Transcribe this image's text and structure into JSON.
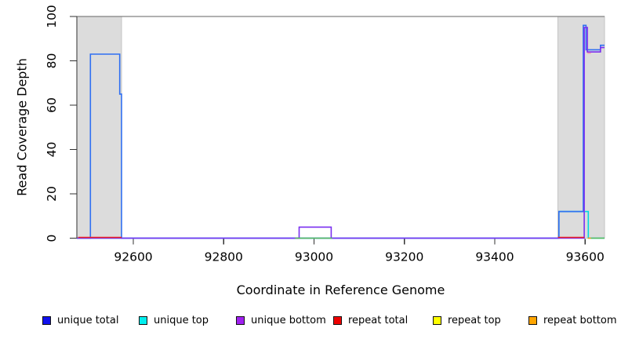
{
  "figure_title": "",
  "axes": {
    "xlabel": "Coordinate in Reference Genome",
    "ylabel": "Read Coverage Depth"
  },
  "chart_data": {
    "type": "line",
    "subtype": "step-coverage-plot",
    "title": "",
    "xlabel": "Coordinate in Reference Genome",
    "ylabel": "Read Coverage Depth",
    "xlim": [
      92475,
      93643
    ],
    "ylim": [
      0,
      100
    ],
    "x_ticks": [
      92600,
      92800,
      93000,
      93200,
      93400,
      93600
    ],
    "y_ticks": [
      0,
      20,
      40,
      60,
      80,
      100
    ],
    "grid": false,
    "reference_line_y": 100,
    "reference_line_color": "#808080",
    "shaded_regions": [
      {
        "name": "left-highlight-region",
        "x1": 92475,
        "x2": 92574,
        "fill": "#dcdcdc",
        "border": "#c4c4c4"
      },
      {
        "name": "right-highlight-region",
        "x1": 93540,
        "x2": 93643,
        "fill": "#dcdcdc",
        "border": "#c4c4c4"
      }
    ],
    "series": [
      {
        "name": "unique total",
        "line_color": "#2f6ff2",
        "legend_color": "#1111ee",
        "step_points": [
          [
            92475,
            0
          ],
          [
            92505,
            0
          ],
          [
            92505,
            83
          ],
          [
            92570,
            83
          ],
          [
            92570,
            65
          ],
          [
            92574,
            65
          ],
          [
            92574,
            0
          ],
          [
            93542,
            0
          ],
          [
            93542,
            12
          ],
          [
            93596,
            12
          ],
          [
            93596,
            96
          ],
          [
            93602,
            96
          ],
          [
            93602,
            85
          ],
          [
            93634,
            85
          ],
          [
            93634,
            87
          ],
          [
            93643,
            87
          ]
        ]
      },
      {
        "name": "unique top",
        "line_color": "#00d9e0",
        "legend_color": "#00eeee",
        "step_points": [
          [
            92475,
            0
          ],
          [
            93542,
            0
          ],
          [
            93542,
            12
          ],
          [
            93607,
            12
          ],
          [
            93607,
            0
          ],
          [
            93643,
            0
          ]
        ]
      },
      {
        "name": "unique bottom",
        "line_color": "#7a2ff0",
        "legend_color": "#a020f0",
        "step_points": [
          [
            92475,
            0
          ],
          [
            92967,
            0
          ],
          [
            92967,
            5
          ],
          [
            93038,
            5
          ],
          [
            93038,
            0
          ],
          [
            93598,
            0
          ],
          [
            93598,
            95
          ],
          [
            93605,
            95
          ],
          [
            93605,
            84
          ],
          [
            93634,
            84
          ],
          [
            93634,
            86
          ],
          [
            93643,
            86
          ]
        ]
      },
      {
        "name": "repeat total",
        "line_color": "#ee2222",
        "legend_color": "#ee0000",
        "segments": [
          {
            "y": 0,
            "x1": 92478,
            "x2": 92574
          },
          {
            "y": 0,
            "x1": 93540,
            "x2": 93598
          },
          {
            "y": 83.5,
            "x1": 93605,
            "x2": 93613,
            "color": "#f490b1"
          }
        ]
      },
      {
        "name": "repeat top",
        "line_color": "#ffff00",
        "legend_color": "#ffff00",
        "segments": []
      },
      {
        "name": "repeat bottom",
        "line_color": "#ff9900",
        "legend_color": "#ffa500",
        "segments": [
          {
            "y": 0,
            "x1": 93606,
            "x2": 93613
          }
        ]
      }
    ],
    "baseline_highlights": {
      "color": "#59b859",
      "segments": [
        {
          "y": 0,
          "x1": 92958,
          "x2": 93040
        },
        {
          "y": 0,
          "x1": 93613,
          "x2": 93643
        }
      ]
    },
    "legend": {
      "position": "bottom",
      "items": [
        {
          "label": "unique total",
          "color": "#1111ee"
        },
        {
          "label": "unique top",
          "color": "#00eeee"
        },
        {
          "label": "unique bottom",
          "color": "#a020f0"
        },
        {
          "label": "repeat total",
          "color": "#ee0000"
        },
        {
          "label": "repeat top",
          "color": "#ffff00"
        },
        {
          "label": "repeat bottom",
          "color": "#ffa500"
        }
      ]
    }
  }
}
